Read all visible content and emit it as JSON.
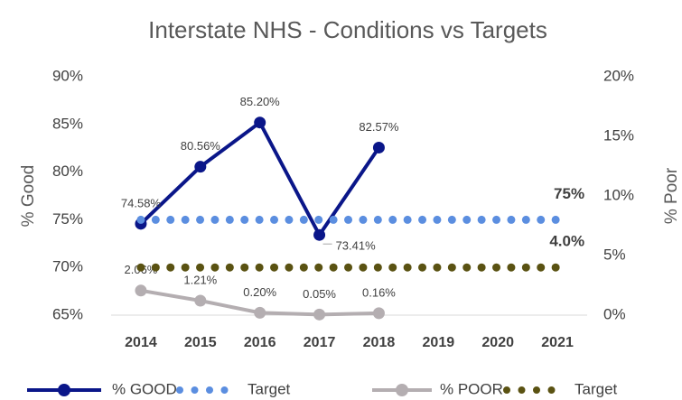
{
  "chart_data": {
    "type": "line",
    "title": "Interstate NHS - Conditions vs Targets",
    "ylabel": "% Good",
    "y2label": "% Poor",
    "categories": [
      "2014",
      "2015",
      "2016",
      "2017",
      "2018",
      "2019",
      "2020",
      "2021"
    ],
    "ylim": [
      65,
      90
    ],
    "yticks": [
      {
        "value": 65,
        "label": "65%"
      },
      {
        "value": 70,
        "label": "70%"
      },
      {
        "value": 75,
        "label": "75%"
      },
      {
        "value": 80,
        "label": "80%"
      },
      {
        "value": 85,
        "label": "85%"
      },
      {
        "value": 90,
        "label": "90%"
      }
    ],
    "y2lim": [
      0,
      20
    ],
    "y2ticks": [
      {
        "value": 0,
        "label": "0%"
      },
      {
        "value": 5,
        "label": "5%"
      },
      {
        "value": 10,
        "label": "10%"
      },
      {
        "value": 15,
        "label": "15%"
      },
      {
        "value": 20,
        "label": "20%"
      }
    ],
    "series": [
      {
        "name": "% GOOD",
        "color": "#0a1689",
        "style": "solid",
        "values": [
          74.58,
          80.56,
          85.2,
          73.41,
          82.57,
          null,
          null,
          null
        ],
        "value_labels": [
          "74.58%",
          "80.56%",
          "85.20%",
          "73.41%",
          "82.57%",
          null,
          null,
          null
        ]
      },
      {
        "name": "Target",
        "color": "#5b8ee0",
        "style": "dotted",
        "values": [
          75,
          75,
          75,
          75,
          75,
          75,
          75,
          75
        ],
        "value_labels": [
          null,
          null,
          null,
          null,
          null,
          null,
          null,
          "75%"
        ]
      },
      {
        "name": "% POOR",
        "color": "#b4aeb1",
        "style": "solid",
        "axis": "y2",
        "values": [
          2.06,
          1.21,
          0.2,
          0.05,
          0.16,
          null,
          null,
          null
        ],
        "value_labels": [
          "2.06%",
          "1.21%",
          "0.20%",
          "0.05%",
          "0.16%",
          null,
          null,
          null
        ]
      },
      {
        "name": "Target",
        "color": "#5a5212",
        "style": "dotted",
        "axis": "y2",
        "values": [
          4.0,
          4.0,
          4.0,
          4.0,
          4.0,
          4.0,
          4.0,
          4.0
        ],
        "value_labels": [
          null,
          null,
          null,
          null,
          null,
          null,
          null,
          "4.0%"
        ]
      }
    ]
  }
}
